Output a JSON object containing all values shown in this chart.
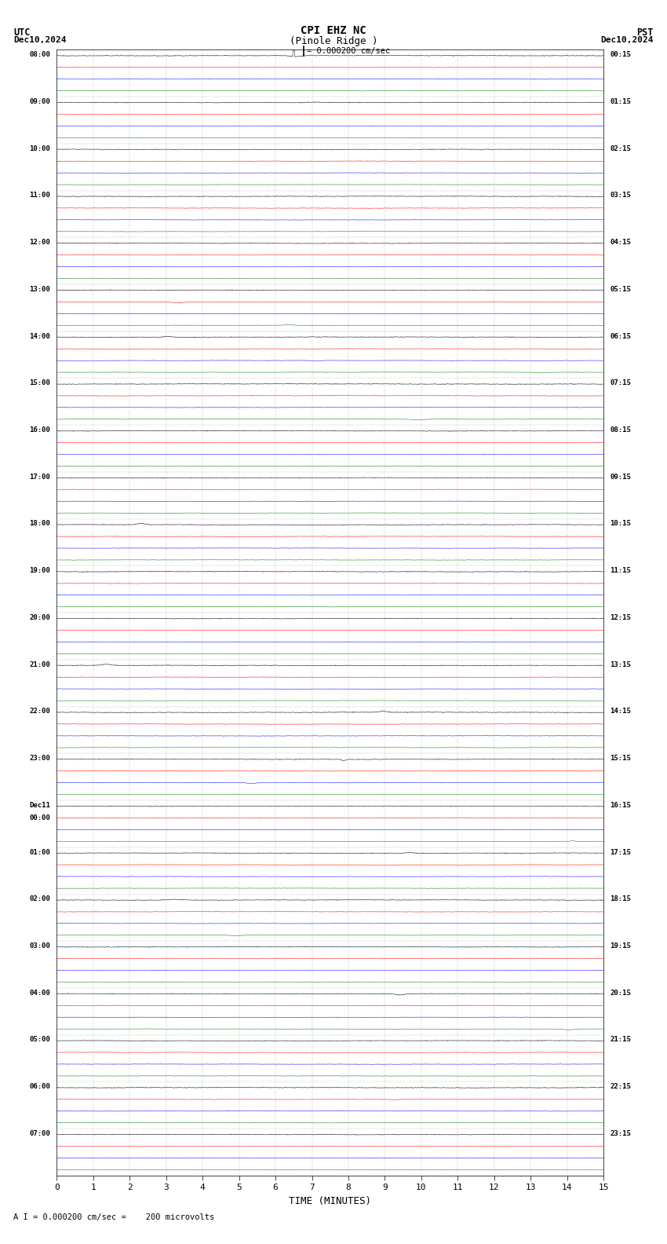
{
  "title_line1": "CPI EHZ NC",
  "title_line2": "(Pinole Ridge )",
  "scale_label": "= 0.000200 cm/sec",
  "left_header": "UTC",
  "left_date": "Dec10,2024",
  "right_header": "PST",
  "right_date": "Dec10,2024",
  "bottom_label": "TIME (MINUTES)",
  "bottom_note": "A I = 0.000200 cm/sec =    200 microvolts",
  "xlabel_ticks": [
    0,
    1,
    2,
    3,
    4,
    5,
    6,
    7,
    8,
    9,
    10,
    11,
    12,
    13,
    14,
    15
  ],
  "utc_labels": [
    "08:00",
    "09:00",
    "10:00",
    "11:00",
    "12:00",
    "13:00",
    "14:00",
    "15:00",
    "16:00",
    "17:00",
    "18:00",
    "19:00",
    "20:00",
    "21:00",
    "22:00",
    "23:00",
    "Dec11\n00:00",
    "01:00",
    "02:00",
    "03:00",
    "04:00",
    "05:00",
    "06:00",
    "07:00"
  ],
  "pst_labels": [
    "00:15",
    "01:15",
    "02:15",
    "03:15",
    "04:15",
    "05:15",
    "06:15",
    "07:15",
    "08:15",
    "09:15",
    "10:15",
    "11:15",
    "12:15",
    "13:15",
    "14:15",
    "15:15",
    "16:15",
    "17:15",
    "18:15",
    "19:15",
    "20:15",
    "21:15",
    "22:15",
    "23:15"
  ],
  "n_rows": 24,
  "n_traces": 4,
  "trace_colors": [
    "black",
    "red",
    "blue",
    "green"
  ],
  "bg_color": "#ffffff",
  "fig_width": 8.5,
  "fig_height": 15.84,
  "dpi": 100
}
